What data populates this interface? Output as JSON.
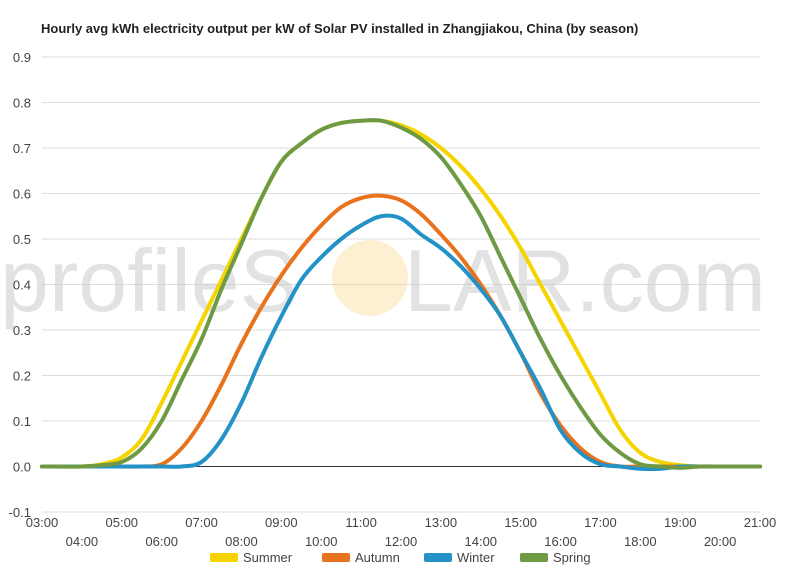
{
  "chart_data": {
    "type": "line",
    "title": "Hourly avg kWh electricity output per kW of Solar PV installed in Zhangjiakou, China (by season)",
    "xlabel": "",
    "ylabel": "",
    "x_ticks": [
      "03:00",
      "04:00",
      "05:00",
      "06:00",
      "07:00",
      "08:00",
      "09:00",
      "10:00",
      "11:00",
      "12:00",
      "13:00",
      "14:00",
      "15:00",
      "16:00",
      "17:00",
      "18:00",
      "19:00",
      "20:00",
      "21:00"
    ],
    "y_ticks": [
      "-0.1",
      "0.0",
      "0.1",
      "0.2",
      "0.3",
      "0.4",
      "0.5",
      "0.6",
      "0.7",
      "0.8",
      "0.9"
    ],
    "ylim": [
      -0.1,
      0.9
    ],
    "xlim": [
      3,
      21
    ],
    "grid": true,
    "legend_position": "bottom",
    "series": [
      {
        "name": "Summer",
        "color": "#f5d400",
        "x": [
          3,
          4,
          4.5,
          5,
          5.5,
          6,
          6.5,
          7,
          7.5,
          8,
          8.5,
          9,
          9.5,
          10,
          10.5,
          11,
          11.5,
          12,
          12.5,
          13,
          13.5,
          14,
          14.5,
          15,
          15.5,
          16,
          16.5,
          17,
          17.5,
          18,
          18.5,
          19,
          19.5,
          20,
          20.5,
          21
        ],
        "values": [
          0,
          0,
          0.005,
          0.02,
          0.06,
          0.14,
          0.23,
          0.32,
          0.41,
          0.5,
          0.59,
          0.67,
          0.71,
          0.74,
          0.755,
          0.76,
          0.76,
          0.75,
          0.73,
          0.7,
          0.66,
          0.61,
          0.55,
          0.48,
          0.4,
          0.32,
          0.24,
          0.16,
          0.08,
          0.03,
          0.01,
          0.003,
          0,
          0,
          0,
          0
        ]
      },
      {
        "name": "Autumn",
        "color": "#e8731c",
        "x": [
          3,
          4,
          4.5,
          5,
          5.5,
          6,
          6.5,
          7,
          7.5,
          8,
          8.5,
          9,
          9.5,
          10,
          10.5,
          11,
          11.5,
          12,
          12.5,
          13,
          13.5,
          14,
          14.5,
          15,
          15.5,
          16,
          16.5,
          17,
          17.5,
          18,
          18.5,
          19,
          19.5,
          20,
          20.5,
          21
        ],
        "values": [
          0,
          0,
          0,
          0,
          0,
          0.005,
          0.04,
          0.1,
          0.18,
          0.27,
          0.35,
          0.42,
          0.48,
          0.53,
          0.57,
          0.59,
          0.595,
          0.585,
          0.555,
          0.51,
          0.46,
          0.4,
          0.33,
          0.25,
          0.16,
          0.09,
          0.04,
          0.01,
          0,
          0,
          0,
          0,
          0,
          0,
          0,
          0
        ]
      },
      {
        "name": "Winter",
        "color": "#2492c6",
        "x": [
          3,
          4,
          4.5,
          5,
          5.5,
          6,
          6.5,
          7,
          7.5,
          8,
          8.5,
          9,
          9.5,
          10,
          10.5,
          11,
          11.5,
          12,
          12.5,
          13,
          13.5,
          14,
          14.5,
          15,
          15.5,
          16,
          16.5,
          17,
          17.5,
          18,
          18.5,
          19,
          19.5,
          20,
          20.5,
          21
        ],
        "values": [
          0,
          0,
          0,
          0,
          0,
          0,
          0,
          0.01,
          0.06,
          0.14,
          0.24,
          0.33,
          0.41,
          0.46,
          0.5,
          0.53,
          0.55,
          0.545,
          0.51,
          0.48,
          0.44,
          0.39,
          0.33,
          0.25,
          0.17,
          0.08,
          0.03,
          0.005,
          0,
          -0.005,
          -0.005,
          0,
          0,
          0,
          0,
          0
        ]
      },
      {
        "name": "Spring",
        "color": "#6e9a44",
        "x": [
          3,
          4,
          4.5,
          5,
          5.5,
          6,
          6.5,
          7,
          7.5,
          8,
          8.5,
          9,
          9.5,
          10,
          10.5,
          11,
          11.5,
          12,
          12.5,
          13,
          13.5,
          14,
          14.5,
          15,
          15.5,
          16,
          16.5,
          17,
          17.5,
          18,
          18.5,
          19,
          19.5,
          20,
          20.5,
          21
        ],
        "values": [
          0,
          0,
          0.003,
          0.01,
          0.04,
          0.1,
          0.19,
          0.28,
          0.39,
          0.49,
          0.59,
          0.67,
          0.71,
          0.74,
          0.755,
          0.76,
          0.76,
          0.745,
          0.72,
          0.68,
          0.62,
          0.55,
          0.46,
          0.37,
          0.28,
          0.2,
          0.13,
          0.07,
          0.03,
          0.005,
          0,
          -0.003,
          0,
          0,
          0,
          0
        ]
      }
    ]
  },
  "watermark": {
    "text_left": "profileS",
    "text_right": "LAR.com",
    "sun_color": "#f7c24a"
  }
}
